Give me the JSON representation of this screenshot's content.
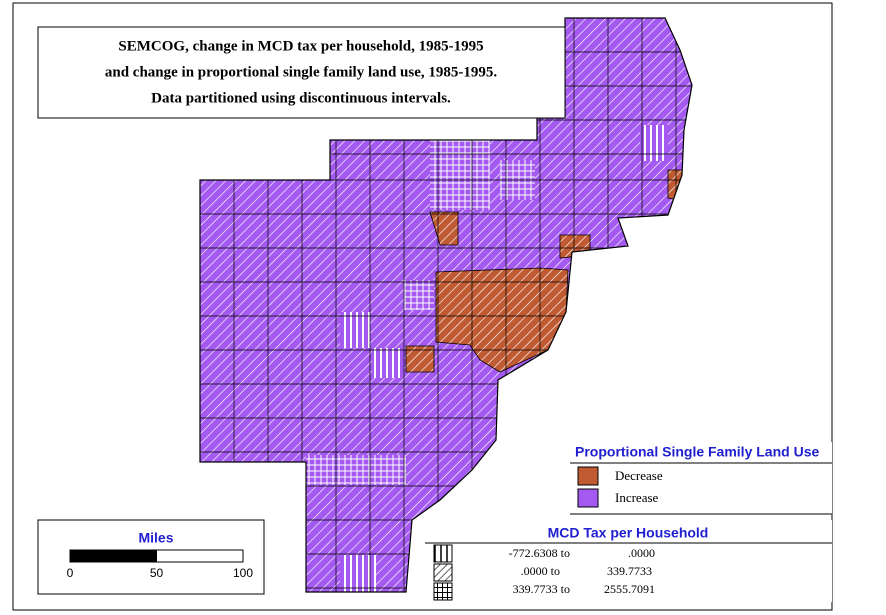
{
  "title": {
    "lines": [
      "SEMCOG, change in MCD tax per household, 1985-1995",
      "and change in proportional single family land use, 1985-1995.",
      "Data partitioned using discontinuous intervals."
    ]
  },
  "land_use_legend": {
    "title": "Proportional Single Family Land Use",
    "items": [
      {
        "label": "Decrease",
        "color": "#c05a32"
      },
      {
        "label": "Increase",
        "color": "#a45af0"
      }
    ]
  },
  "tax_legend": {
    "title": "MCD Tax per Household",
    "rows": [
      [
        "-772.6308 to",
        ".0000"
      ],
      [
        ".0000 to",
        "339.7733"
      ],
      [
        "339.7733 to",
        "2555.7091"
      ]
    ]
  },
  "scale_bar": {
    "title": "Miles",
    "ticks": [
      0,
      50,
      100
    ]
  }
}
